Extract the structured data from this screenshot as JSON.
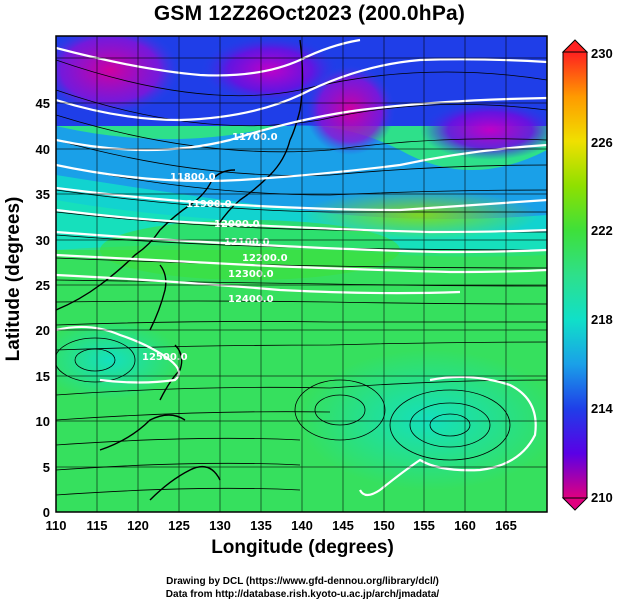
{
  "title": "GSM 12Z26Oct2023 (200.0hPa)",
  "xlabel": "Longitude (degrees)",
  "ylabel": "Latitude  (degrees)",
  "credits": {
    "line1": "Drawing by DCL (https://www.gfd-dennou.org/library/dcl/)",
    "line2": "Data from http://database.rish.kyoto-u.ac.jp/arch/jmadata/"
  },
  "map": {
    "lon_range": [
      110,
      170
    ],
    "lat_range": [
      0,
      50
    ],
    "lon_ticks": [
      "110",
      "115",
      "120",
      "125",
      "130",
      "135",
      "140",
      "145",
      "150",
      "155",
      "160",
      "165"
    ],
    "lat_ticks": [
      "0",
      "5",
      "10",
      "15",
      "20",
      "25",
      "30",
      "35",
      "40",
      "45"
    ],
    "grid": true,
    "field": "temperature (K)",
    "contour_field": "geopotential height (m)",
    "contour_labels": [
      {
        "text": "11700.0",
        "lon": 131.5,
        "lat": 41.0
      },
      {
        "text": "11800.0",
        "lon": 124.0,
        "lat": 37.0
      },
      {
        "text": "11900.0",
        "lon": 126.0,
        "lat": 34.5
      },
      {
        "text": "12000.0",
        "lon": 128.5,
        "lat": 32.8
      },
      {
        "text": "12100.0",
        "lon": 130.0,
        "lat": 31.0
      },
      {
        "text": "12200.0",
        "lon": 132.0,
        "lat": 29.5
      },
      {
        "text": "12300.0",
        "lon": 131.0,
        "lat": 27.5
      },
      {
        "text": "12400.0",
        "lon": 132.0,
        "lat": 24.5
      },
      {
        "text": "12500.0",
        "lon": 120.5,
        "lat": 17.5
      }
    ]
  },
  "colorbar": {
    "min": 210,
    "max": 230,
    "tick_labels": [
      "230",
      "226",
      "222",
      "218",
      "214",
      "210"
    ],
    "colors": [
      "#e0007f",
      "#b800d0",
      "#5a00e6",
      "#1f3ee8",
      "#1aa0e8",
      "#10e0c8",
      "#2ee08a",
      "#3ee03a",
      "#8fe000",
      "#f0e000",
      "#ff9a00",
      "#ff2020"
    ]
  },
  "styles": {
    "contour_color": "#ffffff",
    "grid_color": "#000000",
    "vector_color": "#000000",
    "coast_color": "#000000"
  }
}
